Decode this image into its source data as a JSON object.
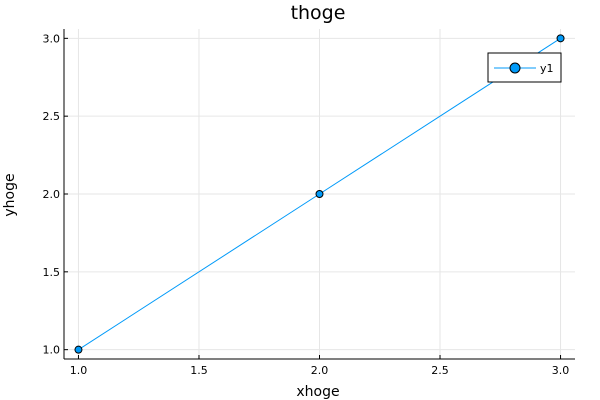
{
  "chart_data": {
    "type": "line",
    "title": "thoge",
    "xlabel": "xhoge",
    "ylabel": "yhoge",
    "x": [
      1.0,
      2.0,
      3.0
    ],
    "series": [
      {
        "name": "y1",
        "values": [
          1.0,
          2.0,
          3.0
        ],
        "color": "#009af9",
        "marker": "circle"
      }
    ],
    "xlim": [
      0.94,
      3.06
    ],
    "ylim": [
      0.94,
      3.06
    ],
    "xticks": [
      1.0,
      1.5,
      2.0,
      2.5,
      3.0
    ],
    "xtick_labels": [
      "1.0",
      "1.5",
      "2.0",
      "2.5",
      "3.0"
    ],
    "yticks": [
      1.0,
      1.5,
      2.0,
      2.5,
      3.0
    ],
    "ytick_labels": [
      "1.0",
      "1.5",
      "2.0",
      "2.5",
      "3.0"
    ],
    "grid": true,
    "legend_position": "top-right"
  }
}
